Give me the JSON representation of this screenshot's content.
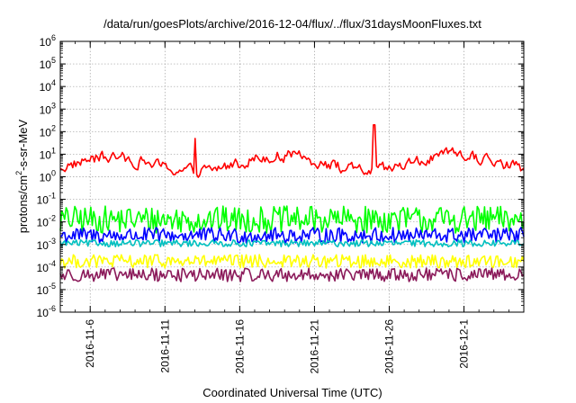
{
  "chart_data": {
    "type": "line",
    "title": "/data/run/goesPlots/archive/2016-12-04/flux/../flux/31daysMoonFluxes.txt",
    "xlabel": "Coordinated Universal Time (UTC)",
    "ylabel": {
      "base": "protons/cm",
      "sup": "2",
      "tail": "-s-sr-MeV"
    },
    "yscale": "log",
    "ylim_exp": [
      -6,
      6
    ],
    "ytick_exps": [
      -6,
      -5,
      -4,
      -3,
      -2,
      -1,
      0,
      1,
      2,
      3,
      4,
      5,
      6
    ],
    "ytick_base": "10",
    "xlim": [
      "2016-11-04",
      "2016-12-05"
    ],
    "xticks": [
      "2016-11-6",
      "2016-11-11",
      "2016-11-16",
      "2016-11-21",
      "2016-11-26",
      "2016-12-1"
    ],
    "grid": true,
    "legend": "none",
    "series": [
      {
        "color": "#ff0000",
        "log_level": 0.6,
        "amplitude": 0.45,
        "points": 300,
        "spikes": [
          {
            "x": "2016-11-13",
            "log_value": 1.7
          },
          {
            "x": "2016-11-25",
            "log_value": 2.3
          }
        ]
      },
      {
        "color": "#00ff00",
        "log_level": -1.9,
        "amplitude": 0.6,
        "points": 320
      },
      {
        "color": "#0000ff",
        "log_level": -2.6,
        "amplitude": 0.35,
        "points": 320
      },
      {
        "color": "#00c0c0",
        "log_level": -2.95,
        "amplitude": 0.15,
        "points": 320
      },
      {
        "color": "#ffff00",
        "log_level": -3.75,
        "amplitude": 0.3,
        "points": 320
      },
      {
        "color": "#8b1a5a",
        "log_level": -4.35,
        "amplitude": 0.3,
        "points": 320
      }
    ]
  }
}
